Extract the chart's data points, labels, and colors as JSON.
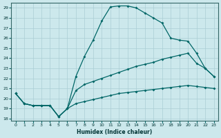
{
  "xlabel": "Humidex (Indice chaleur)",
  "bg_color": "#cce8ec",
  "grid_color": "#aacdd4",
  "line_color": "#006666",
  "xlim": [
    -0.5,
    23.5
  ],
  "ylim": [
    17.8,
    29.5
  ],
  "xticks": [
    0,
    1,
    2,
    3,
    4,
    5,
    6,
    7,
    8,
    9,
    10,
    11,
    12,
    13,
    14,
    15,
    16,
    17,
    18,
    19,
    20,
    21,
    22,
    23
  ],
  "yticks": [
    18,
    19,
    20,
    21,
    22,
    23,
    24,
    25,
    26,
    27,
    28,
    29
  ],
  "line_main_x": [
    0,
    1,
    2,
    3,
    4,
    5,
    6,
    7,
    8,
    9,
    10,
    11,
    12,
    13,
    14,
    15,
    16,
    17,
    18,
    19,
    20,
    21,
    22,
    23
  ],
  "line_main_y": [
    20.5,
    19.5,
    19.3,
    19.3,
    19.3,
    18.2,
    19.0,
    22.2,
    24.2,
    25.8,
    27.7,
    29.1,
    29.2,
    29.2,
    29.0,
    28.5,
    28.0,
    27.5,
    26.0,
    25.8,
    25.7,
    24.5,
    23.0,
    22.2
  ],
  "line_mid_x": [
    0,
    1,
    2,
    3,
    4,
    5,
    6,
    7,
    8,
    9,
    10,
    11,
    12,
    13,
    14,
    15,
    16,
    17,
    18,
    19,
    20,
    21,
    22,
    23
  ],
  "line_mid_y": [
    20.5,
    19.5,
    19.3,
    19.3,
    19.3,
    18.2,
    19.0,
    20.8,
    21.4,
    21.7,
    22.0,
    22.3,
    22.6,
    22.9,
    23.2,
    23.4,
    23.6,
    23.9,
    24.1,
    24.3,
    24.5,
    23.5,
    23.0,
    22.2
  ],
  "line_low_x": [
    0,
    1,
    2,
    3,
    4,
    5,
    6,
    7,
    8,
    9,
    10,
    11,
    12,
    13,
    14,
    15,
    16,
    17,
    18,
    19,
    20,
    21,
    22,
    23
  ],
  "line_low_y": [
    20.5,
    19.5,
    19.3,
    19.3,
    19.3,
    18.2,
    19.0,
    19.5,
    19.7,
    19.9,
    20.1,
    20.3,
    20.5,
    20.6,
    20.7,
    20.8,
    20.9,
    21.0,
    21.1,
    21.2,
    21.3,
    21.2,
    21.1,
    21.0
  ]
}
